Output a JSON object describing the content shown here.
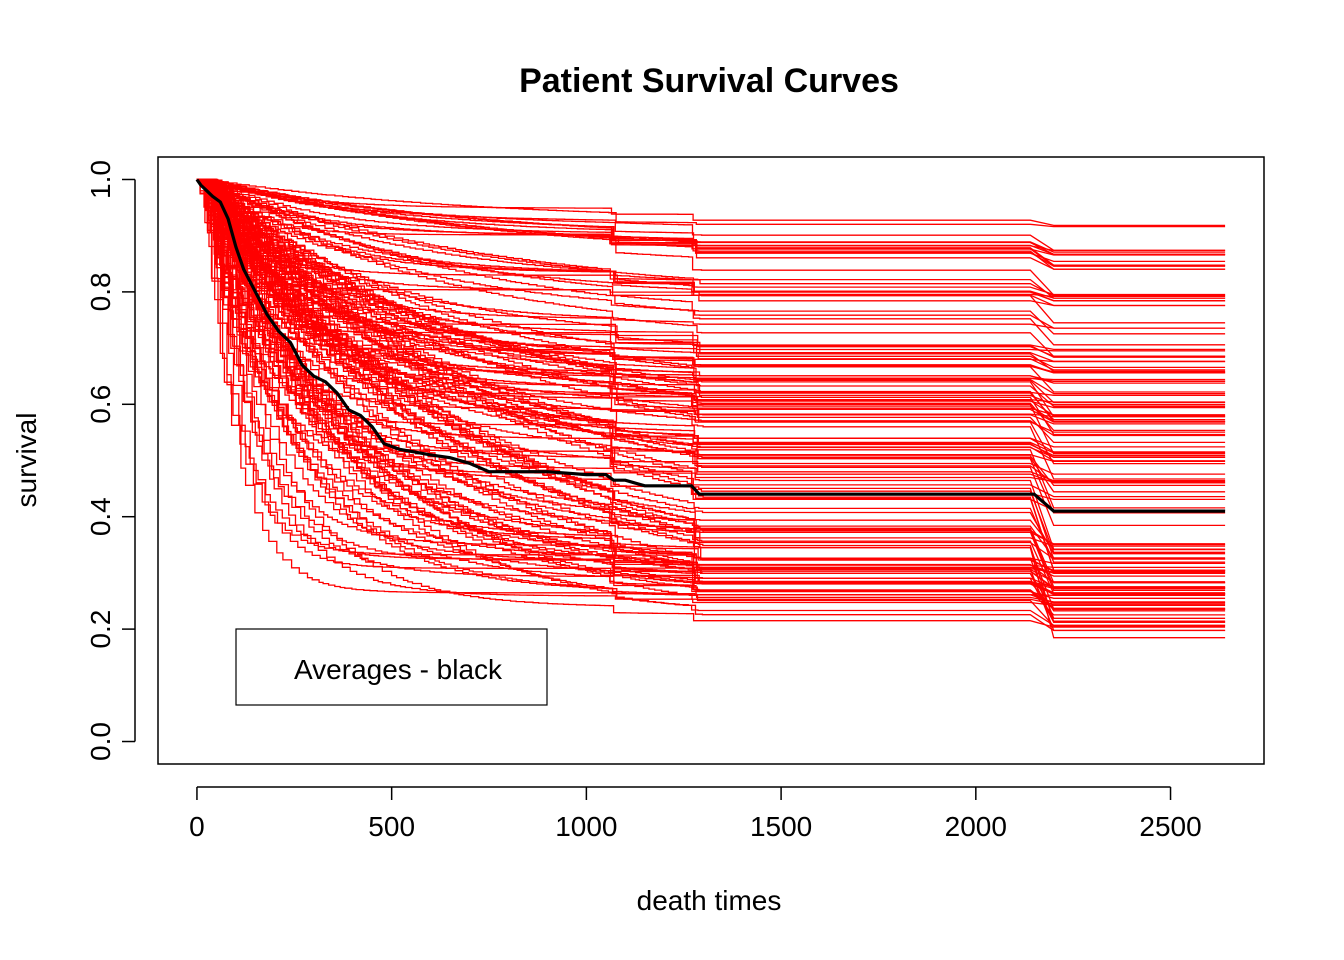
{
  "chart_data": {
    "type": "line",
    "title": "Patient Survival Curves",
    "xlabel": "death times",
    "ylabel": "survival",
    "xlim": [
      -100,
      2740
    ],
    "ylim": [
      -0.04,
      1.04
    ],
    "xticks": [
      0,
      500,
      1000,
      1500,
      2000,
      2500
    ],
    "yticks": [
      0.0,
      0.2,
      0.4,
      0.6,
      0.8,
      1.0
    ],
    "xtick_labels": [
      "0",
      "500",
      "1000",
      "1500",
      "2000",
      "2500"
    ],
    "ytick_labels": [
      "0.0",
      "0.2",
      "0.4",
      "0.6",
      "0.8",
      "1.0"
    ],
    "legend": {
      "text": "Averages - black",
      "position": "bottom-left"
    },
    "colors": {
      "patients": "#ff0000",
      "average": "#000000"
    },
    "time_points": [
      0,
      10,
      25,
      40,
      60,
      80,
      100,
      120,
      150,
      180,
      210,
      240,
      270,
      300,
      330,
      360,
      390,
      420,
      450,
      480,
      520,
      560,
      600,
      650,
      700,
      750,
      800,
      900,
      1000,
      1050,
      1070,
      1100,
      1150,
      1200,
      1270,
      1290,
      1300,
      1450,
      1800,
      2100,
      2150,
      2200,
      2640
    ],
    "average": {
      "name": "Averages - black",
      "values": [
        1.0,
        0.99,
        0.98,
        0.97,
        0.96,
        0.93,
        0.88,
        0.84,
        0.8,
        0.76,
        0.73,
        0.71,
        0.67,
        0.65,
        0.64,
        0.62,
        0.59,
        0.58,
        0.56,
        0.53,
        0.52,
        0.515,
        0.51,
        0.505,
        0.495,
        0.48,
        0.48,
        0.48,
        0.475,
        0.475,
        0.465,
        0.465,
        0.455,
        0.455,
        0.455,
        0.44,
        0.44,
        0.44,
        0.44,
        0.44,
        0.44,
        0.41,
        0.41
      ]
    },
    "patient_curves": {
      "count": 150,
      "initial_survival": 1.0,
      "final_survival_range": [
        0.19,
        0.915
      ],
      "final_survival_levels": [
        0.915,
        0.87,
        0.85,
        0.84,
        0.8,
        0.79,
        0.77,
        0.74,
        0.72,
        0.7,
        0.68,
        0.66,
        0.64,
        0.62,
        0.6,
        0.58,
        0.57,
        0.55,
        0.53,
        0.51,
        0.5,
        0.47,
        0.46,
        0.44,
        0.43,
        0.41,
        0.39,
        0.35,
        0.34,
        0.33,
        0.32,
        0.31,
        0.3,
        0.29,
        0.28,
        0.27,
        0.26,
        0.25,
        0.24,
        0.23,
        0.22,
        0.21,
        0.2,
        0.19
      ],
      "step_times": [
        1060,
        1270,
        2180
      ]
    }
  }
}
